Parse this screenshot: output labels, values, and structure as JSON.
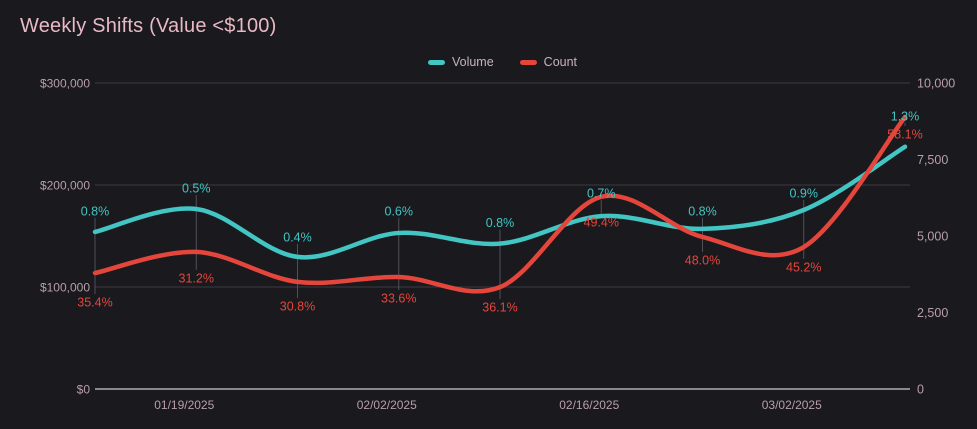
{
  "title": "Weekly Shifts (Value <$100)",
  "colors": {
    "background": "#19191e",
    "volume": "#42c5c3",
    "count": "#e5463c",
    "grid_line": "#3c3c43",
    "zero_axis_line": "#aeaeb4",
    "leader_line": "#50505a",
    "title_text": "#e9bac5",
    "axis_text": "#b99fa7",
    "legend_text": "#c9b3ba"
  },
  "legend": {
    "items": [
      {
        "label": "Volume",
        "color": "#42c5c3"
      },
      {
        "label": "Count",
        "color": "#e5463c"
      }
    ]
  },
  "chart_data": {
    "type": "line",
    "title": "Weekly Shifts (Value <$100)",
    "grid": "horizontal",
    "legend_position": "top-center",
    "x_tick_labels": [
      "01/19/2025",
      "02/02/2025",
      "02/16/2025",
      "03/02/2025"
    ],
    "x_tick_point_indexes": [
      1,
      3,
      5,
      7
    ],
    "num_points": 9,
    "left_axis": {
      "tick_labels": [
        "$300,000",
        "$200,000",
        "$100,000",
        "$0"
      ],
      "tick_values": [
        300000,
        200000,
        100000,
        0
      ],
      "range": [
        0,
        300000
      ]
    },
    "right_axis": {
      "tick_labels": [
        "10,000",
        "7,500",
        "5,000",
        "2,500",
        "0"
      ],
      "tick_values": [
        10000,
        7500,
        5000,
        2500,
        0
      ],
      "range": [
        0,
        10000
      ]
    },
    "series": [
      {
        "name": "Volume",
        "axis": "left",
        "color": "#42c5c3",
        "values": [
          154000,
          176500,
          129500,
          153000,
          142500,
          169500,
          157000,
          175500,
          237500
        ],
        "point_labels": [
          "0.8%",
          "0.5%",
          "0.4%",
          "0.6%",
          "0.8%",
          "0.7%",
          "0.8%",
          "0.9%",
          "1.3%"
        ]
      },
      {
        "name": "Count",
        "axis": "right",
        "color": "#e5463c",
        "values": [
          3790,
          4480,
          3500,
          3660,
          3330,
          6280,
          4970,
          4640,
          8890
        ],
        "point_labels": [
          "35.4%",
          "31.2%",
          "30.8%",
          "33.6%",
          "36.1%",
          "49.4%",
          "48.0%",
          "45.2%",
          "58.1%"
        ]
      }
    ]
  }
}
